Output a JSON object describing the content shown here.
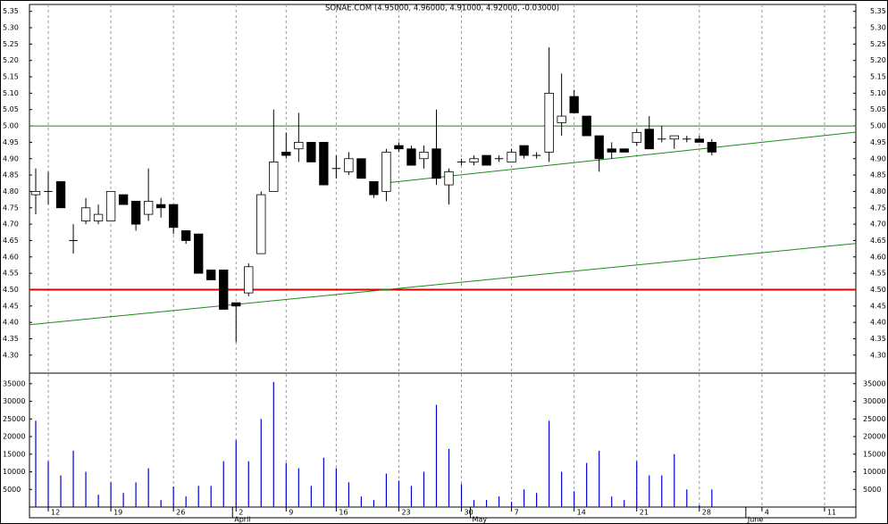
{
  "chart_data": {
    "type": "candlestick",
    "title": "SONAE.COM (4.95000, 4.96000, 4.91000, 4.92000, -0.03000)",
    "categories": [
      null,
      "12",
      null,
      null,
      null,
      null,
      "19",
      null,
      null,
      null,
      null,
      "26",
      null,
      null,
      null,
      null,
      "2",
      null,
      null,
      null,
      "9",
      null,
      null,
      null,
      "16",
      null,
      null,
      null,
      null,
      "23",
      null,
      null,
      null,
      null,
      "30",
      null,
      null,
      null,
      "7",
      null,
      null,
      null,
      null,
      "14",
      null,
      null,
      null,
      null,
      "21",
      null,
      null,
      null,
      null,
      "28",
      null,
      null,
      null,
      null,
      "4",
      null,
      null,
      null,
      null,
      "11",
      null,
      null
    ],
    "months": [
      null,
      null,
      null,
      null,
      null,
      null,
      null,
      null,
      null,
      null,
      null,
      null,
      null,
      null,
      null,
      null,
      "April",
      null,
      null,
      null,
      null,
      null,
      null,
      null,
      null,
      null,
      null,
      null,
      null,
      null,
      null,
      null,
      null,
      null,
      null,
      "May",
      null,
      null,
      null,
      null,
      null,
      null,
      null,
      null,
      null,
      null,
      null,
      null,
      null,
      null,
      null,
      null,
      null,
      null,
      null,
      null,
      null,
      "June",
      null,
      null,
      null,
      null,
      null,
      null,
      null,
      null
    ],
    "open": [
      4.79,
      4.8,
      4.83,
      4.65,
      4.71,
      4.71,
      4.71,
      4.79,
      4.77,
      4.73,
      4.76,
      4.76,
      4.68,
      4.67,
      4.56,
      4.56,
      4.46,
      4.49,
      4.61,
      4.8,
      4.92,
      4.93,
      4.95,
      4.95,
      4.87,
      4.86,
      4.9,
      4.83,
      4.8,
      4.94,
      4.93,
      4.9,
      4.93,
      4.82,
      4.89,
      4.89,
      4.91,
      4.9,
      4.89,
      4.94,
      4.91,
      4.92,
      5.01,
      5.09,
      5.03,
      4.97,
      4.93,
      4.93,
      4.95,
      4.99,
      4.96,
      4.96,
      4.96,
      4.96,
      4.95,
      null,
      null,
      null,
      null,
      null,
      null,
      null,
      null,
      null,
      null,
      null
    ],
    "high": [
      4.87,
      4.86,
      4.83,
      4.7,
      4.78,
      4.76,
      4.8,
      4.79,
      4.77,
      4.87,
      4.78,
      4.76,
      4.68,
      4.67,
      4.56,
      4.56,
      4.46,
      4.58,
      4.8,
      5.05,
      4.98,
      5.04,
      4.95,
      4.95,
      4.91,
      4.92,
      4.9,
      4.83,
      4.93,
      4.95,
      4.94,
      4.94,
      5.05,
      4.87,
      4.9,
      4.91,
      4.91,
      4.91,
      4.93,
      4.94,
      4.92,
      5.24,
      5.16,
      5.11,
      5.03,
      4.97,
      4.95,
      4.93,
      4.99,
      5.03,
      5.0,
      4.97,
      4.97,
      4.97,
      4.96,
      null,
      null,
      null,
      null,
      null,
      null,
      null,
      null,
      null,
      null,
      null
    ],
    "low": [
      4.73,
      4.76,
      4.75,
      4.61,
      4.7,
      4.7,
      4.71,
      4.76,
      4.68,
      4.71,
      4.72,
      4.67,
      4.64,
      4.55,
      4.53,
      4.44,
      4.34,
      4.48,
      4.61,
      4.8,
      4.9,
      4.89,
      4.89,
      4.82,
      4.84,
      4.85,
      4.84,
      4.78,
      4.77,
      4.92,
      4.88,
      4.87,
      4.82,
      4.76,
      4.88,
      4.88,
      4.88,
      4.89,
      4.89,
      4.9,
      4.9,
      4.89,
      4.97,
      5.04,
      4.97,
      4.86,
      4.9,
      4.92,
      4.94,
      4.93,
      4.95,
      4.93,
      4.95,
      4.95,
      4.91,
      null,
      null,
      null,
      null,
      null,
      null,
      null,
      null,
      null,
      null,
      null
    ],
    "close": [
      4.8,
      4.8,
      4.75,
      4.65,
      4.75,
      4.73,
      4.8,
      4.76,
      4.7,
      4.77,
      4.75,
      4.69,
      4.65,
      4.55,
      4.53,
      4.44,
      4.45,
      4.57,
      4.79,
      4.89,
      4.91,
      4.95,
      4.89,
      4.82,
      4.87,
      4.9,
      4.84,
      4.79,
      4.92,
      4.93,
      4.88,
      4.92,
      4.84,
      4.86,
      4.89,
      4.9,
      4.88,
      4.9,
      4.92,
      4.91,
      4.91,
      5.1,
      5.03,
      5.04,
      4.97,
      4.9,
      4.92,
      4.92,
      4.98,
      4.93,
      4.96,
      4.97,
      4.96,
      4.95,
      4.92,
      null,
      null,
      null,
      null,
      null,
      null,
      null,
      null,
      null,
      null,
      null
    ],
    "ylim": [
      4.245,
      5.371
    ],
    "yticks": [
      {
        "value": 4.3,
        "label": "4.30"
      },
      {
        "value": 4.35,
        "label": "4.35"
      },
      {
        "value": 4.4,
        "label": "4.40"
      },
      {
        "value": 4.45,
        "label": "4.45"
      },
      {
        "value": 4.5,
        "label": "4.50"
      },
      {
        "value": 4.55,
        "label": "4.55"
      },
      {
        "value": 4.6,
        "label": "4.60"
      },
      {
        "value": 4.65,
        "label": "4.65"
      },
      {
        "value": 4.7,
        "label": "4.70"
      },
      {
        "value": 4.75,
        "label": "4.75"
      },
      {
        "value": 4.8,
        "label": "4.80"
      },
      {
        "value": 4.85,
        "label": "4.85"
      },
      {
        "value": 4.9,
        "label": "4.90"
      },
      {
        "value": 4.95,
        "label": "4.95"
      },
      {
        "value": 5.0,
        "label": "5.00"
      },
      {
        "value": 5.05,
        "label": "5.05"
      },
      {
        "value": 5.1,
        "label": "5.10"
      },
      {
        "value": 5.15,
        "label": "5.15"
      },
      {
        "value": 5.2,
        "label": "5.20"
      },
      {
        "value": 5.25,
        "label": "5.25"
      },
      {
        "value": 5.3,
        "label": "5.30"
      },
      {
        "value": 5.35,
        "label": "5.35"
      }
    ],
    "hlines": [
      {
        "value": 5.0,
        "color": "#1a8a1a",
        "width": 1
      },
      {
        "value": 4.5,
        "color": "#e00000",
        "width": 2
      }
    ],
    "trendlines": [
      {
        "x": [
          -0.5,
          65.5
        ],
        "y": [
          4.393,
          4.641
        ],
        "color": "#1a8a1a"
      },
      {
        "x": [
          28,
          65.5
        ],
        "y": [
          4.826,
          4.981
        ],
        "color": "#1a8a1a"
      }
    ],
    "volume": {
      "values": [
        24500,
        13000,
        9000,
        16000,
        10000,
        3500,
        7000,
        4000,
        7000,
        11000,
        2000,
        5800,
        3000,
        6000,
        6000,
        13000,
        19000,
        13000,
        25000,
        35500,
        12500,
        11000,
        6000,
        14000,
        11000,
        7000,
        3000,
        2000,
        9500,
        7500,
        6000,
        10000,
        29000,
        16500,
        6500,
        2000,
        2000,
        3000,
        1500,
        5000,
        4000,
        24500,
        10000,
        4500,
        12500,
        16000,
        3000,
        2000,
        13000,
        9000,
        9000,
        15000,
        5000,
        500,
        5000,
        null,
        null,
        null,
        null,
        null,
        null,
        null,
        null,
        null,
        null,
        null
      ],
      "color": "#0000cc",
      "ylim": [
        0,
        38000
      ],
      "yticks": [
        5000,
        10000,
        15000,
        20000,
        25000,
        30000,
        35000
      ]
    },
    "grid": true
  }
}
